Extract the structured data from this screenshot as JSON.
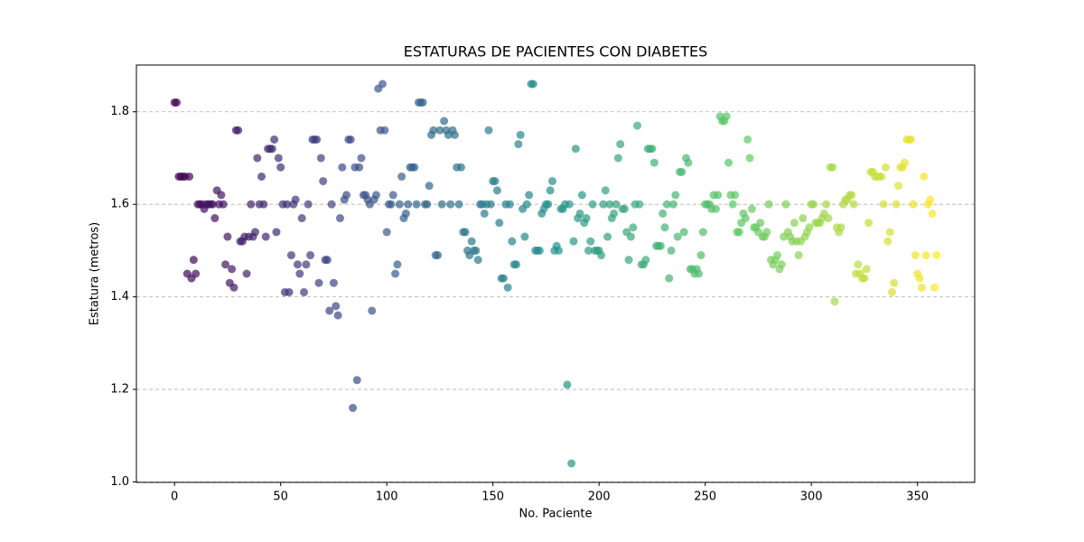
{
  "chart_data": {
    "type": "scatter",
    "title": "ESTATURAS DE PACIENTES CON DIABETES",
    "xlabel": "No. Paciente",
    "ylabel": "Estatura (metros)",
    "x": [
      0,
      1,
      2,
      3,
      4,
      5,
      6,
      7,
      8,
      9,
      10,
      11,
      12,
      13,
      14,
      15,
      16,
      17,
      18,
      19,
      20,
      21,
      22,
      23,
      24,
      25,
      26,
      27,
      28,
      29,
      30,
      31,
      32,
      33,
      34,
      35,
      36,
      37,
      38,
      39,
      40,
      41,
      42,
      43,
      44,
      45,
      46,
      47,
      48,
      49,
      50,
      51,
      52,
      53,
      54,
      55,
      56,
      57,
      58,
      59,
      60,
      61,
      62,
      63,
      64,
      65,
      66,
      67,
      68,
      69,
      70,
      71,
      72,
      73,
      74,
      75,
      76,
      77,
      78,
      79,
      80,
      81,
      82,
      83,
      84,
      85,
      86,
      87,
      88,
      89,
      90,
      91,
      92,
      93,
      94,
      95,
      96,
      97,
      98,
      99,
      100,
      101,
      102,
      103,
      104,
      105,
      106,
      107,
      108,
      109,
      110,
      111,
      112,
      113,
      114,
      115,
      116,
      117,
      118,
      119,
      120,
      121,
      122,
      123,
      124,
      125,
      126,
      127,
      128,
      129,
      130,
      131,
      132,
      133,
      134,
      135,
      136,
      137,
      138,
      139,
      140,
      141,
      142,
      143,
      144,
      145,
      146,
      147,
      148,
      149,
      150,
      151,
      152,
      153,
      154,
      155,
      156,
      157,
      158,
      159,
      160,
      161,
      162,
      163,
      164,
      165,
      166,
      167,
      168,
      169,
      170,
      171,
      172,
      173,
      174,
      175,
      176,
      177,
      178,
      179,
      180,
      181,
      182,
      183,
      184,
      185,
      186,
      187,
      188,
      189,
      190,
      191,
      192,
      193,
      194,
      195,
      196,
      197,
      198,
      199,
      200,
      201,
      202,
      203,
      204,
      205,
      206,
      207,
      208,
      209,
      210,
      211,
      212,
      213,
      214,
      215,
      216,
      217,
      218,
      219,
      220,
      221,
      222,
      223,
      224,
      225,
      226,
      227,
      228,
      229,
      230,
      231,
      232,
      233,
      234,
      235,
      236,
      237,
      238,
      239,
      240,
      241,
      242,
      243,
      244,
      245,
      246,
      247,
      248,
      249,
      250,
      251,
      252,
      253,
      254,
      255,
      256,
      257,
      258,
      259,
      260,
      261,
      262,
      263,
      264,
      265,
      266,
      267,
      268,
      269,
      270,
      271,
      272,
      273,
      274,
      275,
      276,
      277,
      278,
      279,
      280,
      281,
      282,
      283,
      284,
      285,
      286,
      287,
      288,
      289,
      290,
      291,
      292,
      293,
      294,
      295,
      296,
      297,
      298,
      299,
      300,
      301,
      302,
      303,
      304,
      305,
      306,
      307,
      308,
      309,
      310,
      311,
      312,
      313,
      314,
      315,
      316,
      317,
      318,
      319,
      320,
      321,
      322,
      323,
      324,
      325,
      326,
      327,
      328,
      329,
      330,
      331,
      332,
      333,
      334,
      335,
      336,
      337,
      338,
      339,
      340,
      341,
      342,
      343,
      344,
      345,
      346,
      347,
      348,
      349,
      350,
      351,
      352,
      353,
      354,
      355,
      356,
      357,
      358,
      359
    ],
    "values": [
      1.82,
      1.82,
      1.66,
      1.66,
      1.66,
      1.66,
      1.45,
      1.66,
      1.44,
      1.48,
      1.45,
      1.6,
      1.6,
      1.6,
      1.59,
      1.6,
      1.6,
      1.6,
      1.6,
      1.57,
      1.63,
      1.6,
      1.62,
      1.6,
      1.47,
      1.53,
      1.43,
      1.46,
      1.42,
      1.76,
      1.76,
      1.52,
      1.52,
      1.53,
      1.45,
      1.53,
      1.6,
      1.53,
      1.54,
      1.7,
      1.6,
      1.66,
      1.6,
      1.53,
      1.72,
      1.72,
      1.72,
      1.74,
      1.54,
      1.7,
      1.68,
      1.6,
      1.41,
      1.6,
      1.41,
      1.49,
      1.6,
      1.61,
      1.47,
      1.45,
      1.57,
      1.41,
      1.47,
      1.6,
      1.49,
      1.74,
      1.74,
      1.74,
      1.43,
      1.7,
      1.65,
      1.48,
      1.48,
      1.37,
      1.6,
      1.43,
      1.38,
      1.36,
      1.57,
      1.68,
      1.61,
      1.62,
      1.74,
      1.74,
      1.16,
      1.68,
      1.22,
      1.68,
      1.7,
      1.62,
      1.62,
      1.61,
      1.6,
      1.37,
      1.61,
      1.62,
      1.85,
      1.76,
      1.86,
      1.76,
      1.54,
      1.6,
      1.6,
      1.62,
      1.45,
      1.47,
      1.6,
      1.66,
      1.57,
      1.58,
      1.6,
      1.68,
      1.68,
      1.68,
      1.6,
      1.82,
      1.82,
      1.82,
      1.6,
      1.6,
      1.64,
      1.75,
      1.76,
      1.49,
      1.49,
      1.76,
      1.6,
      1.78,
      1.76,
      1.75,
      1.6,
      1.76,
      1.75,
      1.68,
      1.6,
      1.68,
      1.54,
      1.54,
      1.5,
      1.49,
      1.52,
      1.5,
      1.5,
      1.48,
      1.6,
      1.6,
      1.58,
      1.6,
      1.76,
      1.6,
      1.65,
      1.65,
      1.63,
      1.56,
      1.44,
      1.44,
      1.6,
      1.42,
      1.6,
      1.52,
      1.47,
      1.47,
      1.73,
      1.75,
      1.59,
      1.53,
      1.6,
      1.62,
      1.86,
      1.86,
      1.5,
      1.5,
      1.5,
      1.58,
      1.59,
      1.6,
      1.6,
      1.63,
      1.65,
      1.5,
      1.51,
      1.5,
      1.59,
      1.59,
      1.6,
      1.21,
      1.6,
      1.04,
      1.52,
      1.72,
      1.57,
      1.58,
      1.62,
      1.56,
      1.57,
      1.5,
      1.52,
      1.6,
      1.5,
      1.5,
      1.5,
      1.49,
      1.6,
      1.63,
      1.53,
      1.6,
      1.57,
      1.58,
      1.6,
      1.7,
      1.73,
      1.59,
      1.59,
      1.54,
      1.48,
      1.53,
      1.55,
      1.6,
      1.77,
      1.6,
      1.47,
      1.47,
      1.48,
      1.72,
      1.72,
      1.72,
      1.69,
      1.51,
      1.51,
      1.51,
      1.58,
      1.55,
      1.6,
      1.44,
      1.5,
      1.6,
      1.62,
      1.53,
      1.67,
      1.67,
      1.54,
      1.7,
      1.69,
      1.46,
      1.46,
      1.45,
      1.46,
      1.45,
      1.49,
      1.54,
      1.6,
      1.6,
      1.6,
      1.59,
      1.62,
      1.59,
      1.62,
      1.79,
      1.78,
      1.78,
      1.79,
      1.69,
      1.62,
      1.6,
      1.62,
      1.54,
      1.54,
      1.56,
      1.58,
      1.57,
      1.74,
      1.7,
      1.59,
      1.55,
      1.55,
      1.54,
      1.56,
      1.53,
      1.53,
      1.54,
      1.6,
      1.48,
      1.47,
      1.48,
      1.49,
      1.46,
      1.47,
      1.53,
      1.6,
      1.54,
      1.53,
      1.52,
      1.56,
      1.52,
      1.49,
      1.52,
      1.57,
      1.53,
      1.54,
      1.55,
      1.6,
      1.6,
      1.56,
      1.56,
      1.56,
      1.57,
      1.58,
      1.6,
      1.57,
      1.68,
      1.68,
      1.39,
      1.55,
      1.54,
      1.55,
      1.6,
      1.61,
      1.61,
      1.62,
      1.62,
      1.6,
      1.45,
      1.47,
      1.45,
      1.44,
      1.44,
      1.46,
      1.56,
      1.67,
      1.67,
      1.66,
      1.66,
      1.66,
      1.66,
      1.6,
      1.68,
      1.52,
      1.54,
      1.41,
      1.43,
      1.6,
      1.64,
      1.68,
      1.68,
      1.69,
      1.74,
      1.74,
      1.74,
      1.6,
      1.49,
      1.45,
      1.44,
      1.42,
      1.66,
      1.49,
      1.6,
      1.61,
      1.58,
      1.42,
      1.49
    ],
    "colormap": "viridis",
    "alpha": 0.7,
    "xlim": [
      -17.95,
      376.95
    ],
    "xticks": [
      0,
      50,
      100,
      150,
      200,
      250,
      300,
      350
    ],
    "ylim": [
      0.999,
      1.901
    ],
    "yticks": [
      {
        "value": 1.0,
        "label": "1.0"
      },
      1.2,
      1.4,
      1.6,
      1.8
    ],
    "grid": "y"
  }
}
